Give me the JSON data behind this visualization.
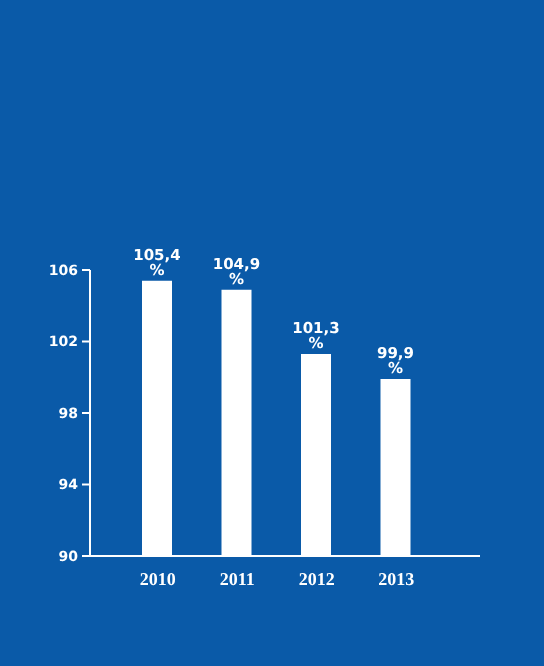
{
  "chart_data": {
    "type": "bar",
    "categories": [
      "2010",
      "2011",
      "2012",
      "2013"
    ],
    "values": [
      105.4,
      104.9,
      101.3,
      99.9
    ],
    "color": "#ffffff",
    "value_labels": [
      "105,4 %",
      "104,9 %",
      "101,3 %",
      "99,9 %"
    ],
    "ylim": [
      90,
      106
    ],
    "yticks": [
      90,
      94,
      98,
      102,
      106
    ],
    "grid": false
  }
}
